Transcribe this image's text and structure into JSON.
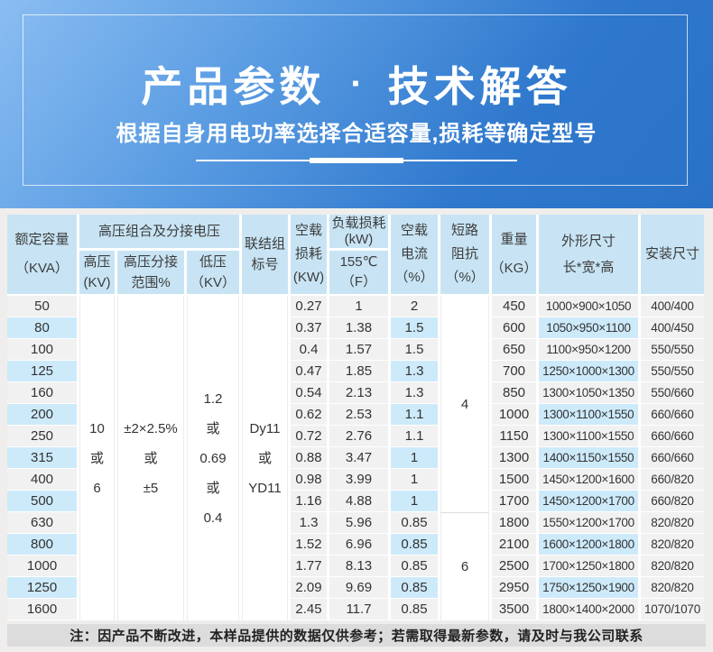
{
  "colors": {
    "banner_gradient_start": "#8abdf2",
    "banner_gradient_end": "#2a72c8",
    "header_cell_bg": "#c8e4f4",
    "row_gray": "#f1f1f1",
    "row_blue": "#cdeafa",
    "note_bar_bg": "#dcdcdc",
    "page_bg": "#efeeec"
  },
  "banner": {
    "title_left": "产品参数",
    "title_separator": "·",
    "title_right": "技术解答",
    "subtitle": "根据自身用电功率选择合适容量,损耗等确定型号"
  },
  "table": {
    "headers": {
      "capacity": "额定容量\n（KVA）",
      "hv_group": "高压组合及分接电压",
      "hv": "高压\n(KV)",
      "hv_tap_range": "高压分接\n范围%",
      "lv": "低压\n（KV）",
      "vector_group": "联结组\n标号",
      "no_load_loss": "空载\n损耗\n(KW)",
      "load_loss_top": "负载损耗\n(kW)",
      "load_loss_bottom": "155℃\n（F）",
      "no_load_current": "空载\n电流\n（%）",
      "impedance": "短路\n阻抗\n（%）",
      "weight": "重量\n（KG）",
      "dimensions": "外形尺寸\n长*宽*高",
      "install": "安装尺寸"
    },
    "merged": {
      "hv": "10\n或\n6",
      "hv_tap_range": "±2×2.5%\n或\n±5",
      "lv": "1.2\n或\n0.69\n或\n0.4",
      "vector_group": "Dy11\n或\nYD11",
      "impedance_top": "4",
      "impedance_bottom": "6"
    },
    "rows": [
      {
        "capacity": "50",
        "no_load_loss": "0.27",
        "load_loss": "1",
        "no_load_current": "2",
        "weight": "450",
        "dimensions": "1000×900×1050",
        "install": "400/400"
      },
      {
        "capacity": "80",
        "no_load_loss": "0.37",
        "load_loss": "1.38",
        "no_load_current": "1.5",
        "weight": "600",
        "dimensions": "1050×950×1100",
        "install": "400/450"
      },
      {
        "capacity": "100",
        "no_load_loss": "0.4",
        "load_loss": "1.57",
        "no_load_current": "1.5",
        "weight": "650",
        "dimensions": "1100×950×1200",
        "install": "550/550"
      },
      {
        "capacity": "125",
        "no_load_loss": "0.47",
        "load_loss": "1.85",
        "no_load_current": "1.3",
        "weight": "700",
        "dimensions": "1250×1000×1300",
        "install": "550/550"
      },
      {
        "capacity": "160",
        "no_load_loss": "0.54",
        "load_loss": "2.13",
        "no_load_current": "1.3",
        "weight": "850",
        "dimensions": "1300×1050×1350",
        "install": "550/660"
      },
      {
        "capacity": "200",
        "no_load_loss": "0.62",
        "load_loss": "2.53",
        "no_load_current": "1.1",
        "weight": "1000",
        "dimensions": "1300×1100×1550",
        "install": "660/660"
      },
      {
        "capacity": "250",
        "no_load_loss": "0.72",
        "load_loss": "2.76",
        "no_load_current": "1.1",
        "weight": "1150",
        "dimensions": "1300×1100×1550",
        "install": "660/660"
      },
      {
        "capacity": "315",
        "no_load_loss": "0.88",
        "load_loss": "3.47",
        "no_load_current": "1",
        "weight": "1300",
        "dimensions": "1400×1150×1550",
        "install": "660/660"
      },
      {
        "capacity": "400",
        "no_load_loss": "0.98",
        "load_loss": "3.99",
        "no_load_current": "1",
        "weight": "1500",
        "dimensions": "1450×1200×1600",
        "install": "660/820"
      },
      {
        "capacity": "500",
        "no_load_loss": "1.16",
        "load_loss": "4.88",
        "no_load_current": "1",
        "weight": "1700",
        "dimensions": "1450×1200×1700",
        "install": "660/820"
      },
      {
        "capacity": "630",
        "no_load_loss": "1.3",
        "load_loss": "5.96",
        "no_load_current": "0.85",
        "weight": "1800",
        "dimensions": "1550×1200×1700",
        "install": "820/820"
      },
      {
        "capacity": "800",
        "no_load_loss": "1.52",
        "load_loss": "6.96",
        "no_load_current": "0.85",
        "weight": "2100",
        "dimensions": "1600×1200×1800",
        "install": "820/820"
      },
      {
        "capacity": "1000",
        "no_load_loss": "1.77",
        "load_loss": "8.13",
        "no_load_current": "0.85",
        "weight": "2500",
        "dimensions": "1700×1250×1800",
        "install": "820/820"
      },
      {
        "capacity": "1250",
        "no_load_loss": "2.09",
        "load_loss": "9.69",
        "no_load_current": "0.85",
        "weight": "2950",
        "dimensions": "1750×1250×1900",
        "install": "820/820"
      },
      {
        "capacity": "1600",
        "no_load_loss": "2.45",
        "load_loss": "11.7",
        "no_load_current": "0.85",
        "weight": "3500",
        "dimensions": "1800×1400×2000",
        "install": "1070/1070"
      }
    ]
  },
  "note": "注：因产品不断改进，本样品提供的数据仅供参考；若需取得最新参数，请及时与我公司联系"
}
